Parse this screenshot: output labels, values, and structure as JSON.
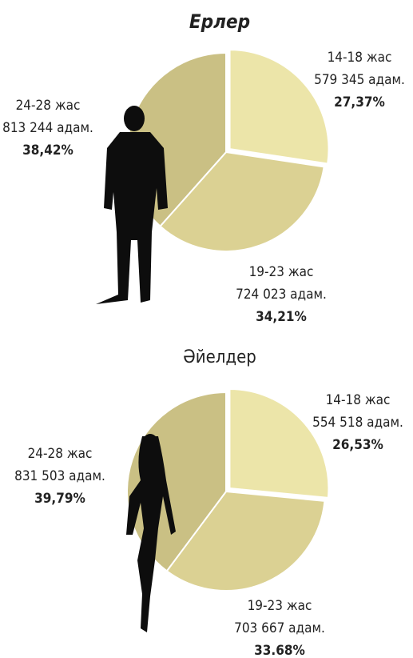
{
  "chart_data": [
    {
      "type": "pie",
      "title": "Ерлер",
      "categories": [
        "14-18 жас",
        "19-23 жас",
        "24-28 жас"
      ],
      "count_labels": [
        "579 345 адам.",
        "724 023 адам.",
        "813 244 адам."
      ],
      "values": [
        27.37,
        34.21,
        38.42
      ],
      "value_labels": [
        "27,37%",
        "34,21%",
        "38,42%"
      ],
      "colors": [
        "#ece5a9",
        "#dbd193",
        "#cac084"
      ]
    },
    {
      "type": "pie",
      "title": "Әйелдер",
      "categories": [
        "14-18 жас",
        "19-23 жас",
        "24-28 жас"
      ],
      "count_labels": [
        "554 518 адам.",
        "703 667 адам.",
        "831 503 адам."
      ],
      "values": [
        26.53,
        33.68,
        39.79
      ],
      "value_labels": [
        "26,53%",
        "33.68%",
        "39,79%"
      ],
      "colors": [
        "#ece5a9",
        "#dbd193",
        "#cac084"
      ]
    }
  ]
}
